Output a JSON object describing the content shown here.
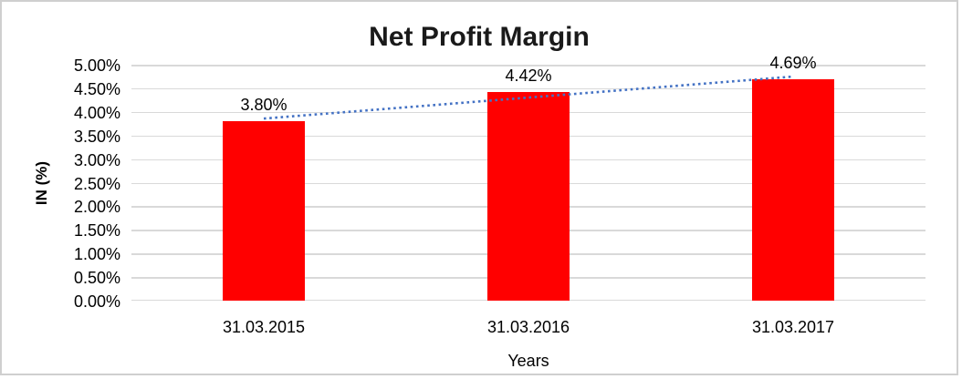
{
  "chart_data": {
    "type": "bar",
    "title": "Net Profit Margin",
    "xlabel": "Years",
    "ylabel": "IN (%)",
    "categories": [
      "31.03.2015",
      "31.03.2016",
      "31.03.2017"
    ],
    "series": [
      {
        "name": "Net Profit Margin",
        "values": [
          3.8,
          4.42,
          4.69
        ]
      }
    ],
    "data_labels": [
      "3.80%",
      "4.42%",
      "4.69%"
    ],
    "ylim": [
      0,
      5
    ],
    "ytick_step": 0.5,
    "ytick_labels": [
      "0.00%",
      "0.50%",
      "1.00%",
      "1.50%",
      "2.00%",
      "2.50%",
      "3.00%",
      "3.50%",
      "4.00%",
      "4.50%",
      "5.00%"
    ],
    "grid": true,
    "legend": "none",
    "bar_color": "#ff0000",
    "gridline_color": "#d9d9d9",
    "trendline": {
      "type": "linear",
      "style": "dotted",
      "color": "#4472c4"
    }
  }
}
